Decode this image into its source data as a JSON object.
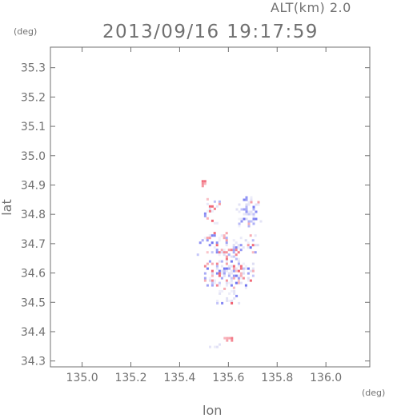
{
  "header": {
    "altitude_label": "ALT(km) 2.0",
    "title": "2013/09/16 19:17:59"
  },
  "chart_data": {
    "type": "heatmap",
    "title": "2013/09/16 19:17:59",
    "xlabel": "lon",
    "ylabel": "lat",
    "xunit": "(deg)",
    "yunit": "(deg)",
    "xlim": [
      134.87,
      136.18
    ],
    "ylim": [
      34.28,
      35.37
    ],
    "xticks": [
      135.0,
      135.2,
      135.4,
      135.6,
      135.8,
      136.0
    ],
    "xtick_labels": [
      "135.0",
      "135.2",
      "135.4",
      "135.6",
      "135.8",
      "136.0"
    ],
    "yticks": [
      34.3,
      34.4,
      34.5,
      34.6,
      34.7,
      34.8,
      34.9,
      35.0,
      35.1,
      35.2,
      35.3
    ],
    "ytick_labels": [
      "34.3",
      "34.4",
      "34.5",
      "34.6",
      "34.7",
      "34.8",
      "34.9",
      "35.0",
      "35.1",
      "35.2",
      "35.3"
    ],
    "grid": false,
    "colors": {
      "positive": "#f06070",
      "negative": "#6a6ef0",
      "neutral": "#dcdcf4",
      "axis": "#707070"
    },
    "regions": [
      {
        "lon": [
          135.48,
          135.52
        ],
        "lat": [
          34.9,
          34.925
        ],
        "sign": "positive",
        "density": 0.8
      },
      {
        "lon": [
          135.5,
          135.56
        ],
        "lat": [
          34.77,
          34.88
        ],
        "sign": "mixed",
        "density": 0.35
      },
      {
        "lon": [
          135.63,
          135.73
        ],
        "lat": [
          34.76,
          34.87
        ],
        "sign": "mixed",
        "density": 0.6
      },
      {
        "lon": [
          135.46,
          135.72
        ],
        "lat": [
          34.66,
          34.74
        ],
        "sign": "mixed",
        "density": 0.45
      },
      {
        "lon": [
          135.5,
          135.7
        ],
        "lat": [
          34.55,
          34.66
        ],
        "sign": "mixed",
        "density": 0.6
      },
      {
        "lon": [
          135.54,
          135.64
        ],
        "lat": [
          34.48,
          34.55
        ],
        "sign": "mixed",
        "density": 0.4
      },
      {
        "lon": [
          135.58,
          135.62
        ],
        "lat": [
          34.37,
          34.39
        ],
        "sign": "positive",
        "density": 0.9
      },
      {
        "lon": [
          135.52,
          135.58
        ],
        "lat": [
          34.34,
          34.36
        ],
        "sign": "neutral",
        "density": 0.3
      }
    ]
  }
}
